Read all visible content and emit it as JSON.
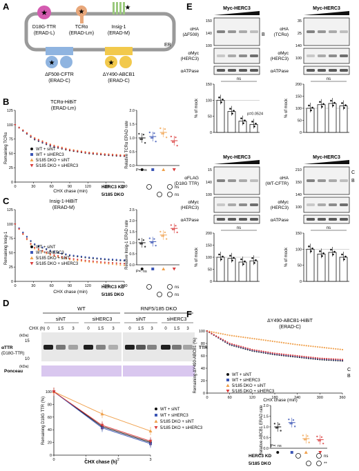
{
  "panels": {
    "A": "A",
    "B": "B",
    "C": "C",
    "D": "D",
    "E": "E",
    "F": "F"
  },
  "A": {
    "proteins": [
      {
        "name": "D18G-TTR",
        "group": "(ERAD-L)",
        "color": "#d45bb0"
      },
      {
        "name": "TCRα",
        "group": "(ERAD-Lm)",
        "color": "#e8a77a"
      },
      {
        "name": "Insig-1",
        "group": "(ERAD-M)",
        "color": "#9bc97e"
      },
      {
        "name": "ΔF508-CFTR",
        "group": "(ERAD-C)",
        "color": "#8fb4e0"
      },
      {
        "name": "ΔY490-ABCB1",
        "group": "(ERAD-C)",
        "color": "#f2c94c"
      }
    ],
    "er_label": "ER"
  },
  "B": {
    "title": "TCRα-HiBiT",
    "subtitle": "(ERAD-Lm)",
    "ylabel": "Remaining TCRα",
    "xlabel": "CHX chase (min)",
    "yticks": [
      "0",
      "25",
      "50",
      "75",
      "100",
      "125"
    ],
    "xticks": [
      "0",
      "30",
      "60",
      "90",
      "120",
      "150",
      "180"
    ],
    "legend": [
      "WT + siNT",
      "WT + siHERC3",
      "5/185 DKO + siNT",
      "5/185 DKO + siHERC3"
    ],
    "rate_label": "Relative TCRα ERAD rate",
    "pval": "P=: ns",
    "rate_yticks": [
      "0.0",
      "0.5",
      "1.0",
      "1.5",
      "2.0"
    ],
    "kd_label": "HERC3 KD",
    "dko_label": "5/185 DKO",
    "ns1": "ns",
    "ns2": "ns"
  },
  "C": {
    "title": "Insig-1-HiBiT",
    "subtitle": "(ERAD-M)",
    "ylabel": "Remaining Insig-1",
    "xlabel": "CHX chase (min)",
    "yticks": [
      "0",
      "25",
      "50",
      "75",
      "100",
      "125"
    ],
    "xticks": [
      "0",
      "30",
      "60",
      "90",
      "120",
      "150",
      "180"
    ],
    "legend": [
      "WT + siNT",
      "WT + siHERC3",
      "5/185 DKO + siNT",
      "5/185 DKO + siHERC3"
    ],
    "rate_label": "Relative Insig-1 ERAD rate",
    "pval": "P=: ns",
    "rate_yticks": [
      "0.0",
      "0.5",
      "1.0",
      "1.5",
      "2.0",
      "2.5"
    ],
    "kd_label": "HERC3 KD",
    "dko_label": "5/185 DKO",
    "ns1": "ns",
    "ns2": "ns"
  },
  "D": {
    "wt": "WT",
    "dko": "RNF5/185 DKO",
    "siNT": "siNT",
    "siHERC3": "siHERC3",
    "chx": "CHX (h)",
    "times": [
      "0",
      "1.5",
      "3",
      "0",
      "1.5",
      "3",
      "0",
      "1.5",
      "3",
      "0",
      "1.5",
      "3"
    ],
    "kda": "(kDa)",
    "m15": "15",
    "m10": "10",
    "blot_label1": "αTTR",
    "blot_label2": "(D18G-TTR)",
    "ttr": "TTR",
    "ponceau": "Ponceau",
    "ylabel": "Remaining D18G TTR (%)",
    "xlabel": "CHX chase (h)",
    "yticks": [
      "0",
      "20",
      "40",
      "60",
      "80",
      "100"
    ],
    "xticks": [
      "0",
      "1",
      "2",
      "3"
    ],
    "legend": [
      "WT + siNT",
      "WT + siHERC3",
      "5/185 DKO + siNT",
      "5/185 DKO + siHERC3"
    ]
  },
  "E": {
    "myc": "Myc-HERC3",
    "e1": {
      "l1": "αHA",
      "l1b": "(ΔF508)",
      "l2": "αMyc",
      "l2b": "(HERC3)",
      "l3": "αATPase",
      "mw": [
        "150",
        "140",
        "100"
      ],
      "band": "B",
      "ns": "ns",
      "p": "p=0.0524"
    },
    "e2": {
      "l1": "αHA",
      "l1b": "(TCRα)",
      "l2": "αMyc",
      "l2b": "(HERC3)",
      "l3": "αATPase",
      "mw": [
        "35",
        "25",
        "140",
        "100"
      ],
      "ns": "ns"
    },
    "e3": {
      "l1": "αFLAG",
      "l1b": "(D18G TTR)",
      "l2": "αMyc",
      "l2b": "(HERC3)",
      "l3": "αATPase",
      "mw": [
        "15",
        "140",
        "100"
      ],
      "ns": "ns"
    },
    "e4": {
      "l1": "αHA",
      "l1b": "(WT-CFTR)",
      "l2": "αMyc",
      "l2b": "(HERC3)",
      "l3": "αATPase",
      "mw": [
        "210",
        "150",
        "140",
        "100"
      ],
      "bandC": "C",
      "bandB": "B",
      "ns": "ns"
    },
    "yticks": [
      "0",
      "50",
      "100",
      "150",
      "200"
    ],
    "ylabel": "% of mock"
  },
  "F": {
    "title": "ΔY490-ABCB1-HiBiT",
    "subtitle": "(ERAD-C)",
    "ylabel": "Remaining ΔY490-ABCB1 (%)",
    "xlabel": "CHX chase (min)",
    "yticks": [
      "0",
      "20",
      "40",
      "60",
      "80",
      "100"
    ],
    "xticks": [
      "0",
      "60",
      "120",
      "180",
      "240",
      "300",
      "360"
    ],
    "legend": [
      "WT + siNT",
      "WT + siHERC3",
      "5/185 DKO + siNT",
      "5/185 DKO + siHERC3"
    ],
    "C": "C",
    "B": "B",
    "rate_label": "Relative ABCB1 ERAD rate",
    "pval": "P=: ns",
    "rate_yticks": [
      "0.0",
      "0.5",
      "1.0",
      "1.5",
      "2.0"
    ],
    "kd_label": "HERC3 KD",
    "dko_label": "5/185 DKO",
    "ns1": "ns",
    "ns2": "**"
  },
  "series_colors": {
    "wt_sint": "#111111",
    "wt_siherc3": "#3b55b5",
    "dko_sint": "#f0a04b",
    "dko_siherc3": "#d93c3c"
  },
  "chart_data": [
    {
      "panel": "B",
      "type": "line",
      "x": [
        0,
        30,
        60,
        90,
        120,
        150,
        180
      ],
      "series": [
        {
          "name": "WT + siNT",
          "values": [
            100,
            75,
            62,
            55,
            50,
            47,
            45
          ]
        },
        {
          "name": "WT + siHERC3",
          "values": [
            100,
            76,
            63,
            56,
            51,
            48,
            46
          ]
        },
        {
          "name": "5/185 DKO + siNT",
          "values": [
            100,
            78,
            65,
            57,
            52,
            49,
            47
          ]
        },
        {
          "name": "5/185 DKO + siHERC3",
          "values": [
            100,
            77,
            64,
            56,
            51,
            48,
            46
          ]
        }
      ],
      "xlabel": "CHX chase (min)",
      "ylabel": "Remaining TCRα",
      "ylim": [
        0,
        125
      ]
    },
    {
      "panel": "C",
      "type": "line",
      "x": [
        0,
        30,
        60,
        90,
        120,
        150,
        180
      ],
      "series": [
        {
          "name": "WT + siNT",
          "values": [
            100,
            65,
            52,
            45,
            41,
            38,
            36
          ]
        },
        {
          "name": "WT + siHERC3",
          "values": [
            100,
            66,
            53,
            46,
            42,
            39,
            37
          ]
        },
        {
          "name": "5/185 DKO + siNT",
          "values": [
            100,
            58,
            45,
            38,
            34,
            31,
            28
          ]
        },
        {
          "name": "5/185 DKO + siHERC3",
          "values": [
            100,
            60,
            47,
            40,
            36,
            33,
            31
          ]
        }
      ],
      "xlabel": "CHX chase (min)",
      "ylabel": "Remaining Insig-1",
      "ylim": [
        0,
        125
      ]
    },
    {
      "panel": "D",
      "type": "line",
      "x": [
        0,
        1.5,
        3
      ],
      "series": [
        {
          "name": "WT + siNT",
          "values": [
            100,
            45,
            20
          ]
        },
        {
          "name": "WT + siHERC3",
          "values": [
            100,
            43,
            18
          ]
        },
        {
          "name": "5/185 DKO + siNT",
          "values": [
            100,
            65,
            38
          ]
        },
        {
          "name": "5/185 DKO + siHERC3",
          "values": [
            100,
            47,
            22
          ]
        }
      ],
      "xlabel": "CHX chase (h)",
      "ylabel": "Remaining D18G TTR (%)",
      "ylim": [
        0,
        100
      ]
    },
    {
      "panel": "F",
      "type": "line",
      "x": [
        0,
        60,
        120,
        180,
        240,
        300,
        360
      ],
      "series": [
        {
          "name": "WT + siNT",
          "values": [
            100,
            78,
            68,
            62,
            58,
            54,
            52
          ]
        },
        {
          "name": "WT + siHERC3",
          "values": [
            100,
            79,
            69,
            63,
            59,
            55,
            53
          ]
        },
        {
          "name": "5/185 DKO + siNT",
          "values": [
            100,
            93,
            88,
            83,
            78,
            74,
            70
          ]
        },
        {
          "name": "5/185 DKO + siHERC3",
          "values": [
            100,
            80,
            70,
            64,
            60,
            56,
            54
          ]
        }
      ],
      "xlabel": "CHX chase (min)",
      "ylabel": "Remaining ΔY490-ABCB1 (%)",
      "ylim": [
        0,
        100
      ]
    },
    {
      "panel": "B-rate",
      "type": "scatter",
      "categories": [
        "WT + siNT",
        "WT + siHERC3",
        "5/185 DKO + siNT",
        "5/185 DKO + siHERC3"
      ],
      "values": [
        1.0,
        1.05,
        1.2,
        0.9
      ],
      "ylim": [
        0,
        2
      ]
    },
    {
      "panel": "C-rate",
      "type": "scatter",
      "categories": [
        "WT + siNT",
        "WT + siHERC3",
        "5/185 DKO + siNT",
        "5/185 DKO + siHERC3"
      ],
      "values": [
        1.0,
        1.05,
        1.35,
        1.65
      ],
      "ylim": [
        0,
        2.5
      ]
    },
    {
      "panel": "F-rate",
      "type": "scatter",
      "categories": [
        "WT + siNT",
        "WT + siHERC3",
        "5/185 DKO + siNT",
        "5/185 DKO + siHERC3"
      ],
      "values": [
        1.0,
        1.2,
        0.45,
        0.4
      ],
      "ylim": [
        0,
        2
      ]
    },
    {
      "panel": "E1",
      "type": "bar",
      "categories": [
        "0",
        "1",
        "2",
        "3"
      ],
      "values": [
        100,
        65,
        35,
        25
      ],
      "ylim": [
        0,
        150
      ]
    },
    {
      "panel": "E2",
      "type": "bar",
      "categories": [
        "0",
        "1",
        "2",
        "3"
      ],
      "values": [
        100,
        115,
        120,
        110
      ],
      "ylim": [
        0,
        200
      ]
    },
    {
      "panel": "E3",
      "type": "bar",
      "categories": [
        "0",
        "1",
        "2",
        "3"
      ],
      "values": [
        100,
        95,
        80,
        85
      ],
      "ylim": [
        0,
        200
      ]
    },
    {
      "panel": "E4",
      "type": "bar",
      "categories": [
        "0",
        "1",
        "2",
        "3"
      ],
      "values": [
        100,
        85,
        90,
        75
      ],
      "ylim": [
        0,
        150
      ]
    }
  ]
}
